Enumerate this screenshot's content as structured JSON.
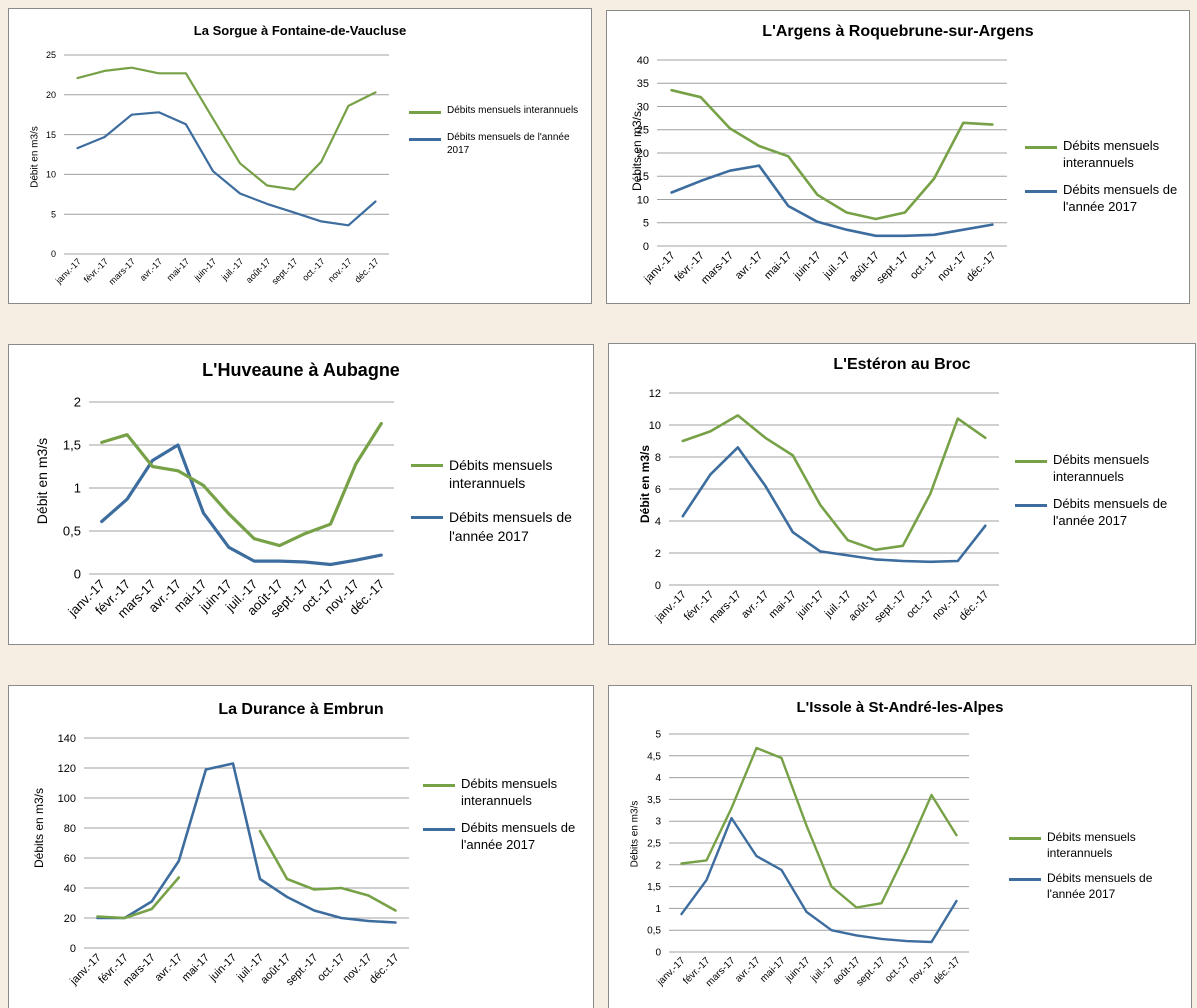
{
  "legend": {
    "interannual": "Débits mensuels interannuels",
    "year2017": "Débits mensuels de l'année 2017"
  },
  "colors": {
    "interannual": "#77a147",
    "year2017": "#3d6d9e",
    "grid": "#a0a0a0"
  },
  "chart_data": [
    {
      "type": "line",
      "title": "La Sorgue à Fontaine-de-Vaucluse",
      "ylabel": "Débit en m3/s",
      "categories": [
        "janv.-17",
        "févr.-17",
        "mars-17",
        "avr.-17",
        "mai-17",
        "juin-17",
        "juil.-17",
        "août-17",
        "sept.-17",
        "oct.-17",
        "nov.-17",
        "déc.-17"
      ],
      "yticks": [
        "0",
        "5",
        "10",
        "15",
        "20",
        "25"
      ],
      "ylim": [
        0,
        25
      ],
      "grid": true,
      "legend_position": "right",
      "series": [
        {
          "name": "Débits mensuels interannuels",
          "values": [
            22.1,
            23.0,
            23.4,
            22.7,
            22.7,
            17.0,
            11.4,
            8.6,
            8.1,
            11.6,
            18.6,
            20.3
          ]
        },
        {
          "name": "Débits mensuels de l'année 2017",
          "values": [
            13.3,
            14.7,
            17.5,
            17.8,
            16.3,
            10.4,
            7.6,
            6.3,
            5.2,
            4.1,
            3.6,
            6.6
          ]
        }
      ]
    },
    {
      "type": "line",
      "title": "L'Argens à Roquebrune-sur-Argens",
      "ylabel": "Débits en m3/s",
      "categories": [
        "janv.-17",
        "févr.-17",
        "mars-17",
        "avr.-17",
        "mai-17",
        "juin-17",
        "juil.-17",
        "août-17",
        "sept.-17",
        "oct.-17",
        "nov.-17",
        "déc.-17"
      ],
      "yticks": [
        "0",
        "5",
        "10",
        "15",
        "20",
        "25",
        "30",
        "35",
        "40"
      ],
      "ylim": [
        0,
        40
      ],
      "grid": true,
      "legend_position": "right",
      "series": [
        {
          "name": "Débits mensuels interannuels",
          "values": [
            33.5,
            32.0,
            25.3,
            21.5,
            19.3,
            11.0,
            7.2,
            5.8,
            7.2,
            14.5,
            26.5,
            26.1
          ]
        },
        {
          "name": "Débits mensuels de l'année 2017",
          "values": [
            11.5,
            14.0,
            16.2,
            17.3,
            8.6,
            5.2,
            3.5,
            2.2,
            2.2,
            2.4,
            3.5,
            4.6
          ]
        }
      ]
    },
    {
      "type": "line",
      "title": "L'Huveaune à Aubagne",
      "ylabel": "Débit en m3/s",
      "categories": [
        "janv.-17",
        "févr.-17",
        "mars-17",
        "avr.-17",
        "mai-17",
        "juin-17",
        "juil.-17",
        "août-17",
        "sept.-17",
        "oct.-17",
        "nov.-17",
        "déc.-17"
      ],
      "yticks": [
        "0",
        "0,5",
        "1",
        "1,5",
        "2"
      ],
      "ylim": [
        0,
        2
      ],
      "grid": true,
      "legend_position": "right",
      "series": [
        {
          "name": "Débits mensuels interannuels",
          "values": [
            1.53,
            1.62,
            1.25,
            1.2,
            1.03,
            0.7,
            0.41,
            0.33,
            0.47,
            0.58,
            1.28,
            1.75
          ]
        },
        {
          "name": "Débits mensuels de l'année 2017",
          "values": [
            0.61,
            0.87,
            1.32,
            1.5,
            0.71,
            0.31,
            0.15,
            0.15,
            0.14,
            0.11,
            0.16,
            0.22
          ]
        }
      ]
    },
    {
      "type": "line",
      "title": "L'Estéron au Broc",
      "ylabel": "Débit en m3/s",
      "categories": [
        "janv.-17",
        "févr.-17",
        "mars-17",
        "avr.-17",
        "mai-17",
        "juin-17",
        "juil.-17",
        "août-17",
        "sept.-17",
        "oct.-17",
        "nov.-17",
        "déc.-17"
      ],
      "yticks": [
        "0",
        "2",
        "4",
        "6",
        "8",
        "10",
        "12"
      ],
      "ylim": [
        0,
        12
      ],
      "grid": true,
      "legend_position": "right",
      "series": [
        {
          "name": "Débits mensuels interannuels",
          "values": [
            9.0,
            9.6,
            10.6,
            9.2,
            8.1,
            5.0,
            2.8,
            2.2,
            2.45,
            5.7,
            10.4,
            9.2
          ]
        },
        {
          "name": "Débits mensuels de l'année 2017",
          "values": [
            4.3,
            6.9,
            8.6,
            6.2,
            3.3,
            2.1,
            1.85,
            1.6,
            1.5,
            1.45,
            1.5,
            3.7
          ]
        }
      ]
    },
    {
      "type": "line",
      "title": "La Durance à Embrun",
      "ylabel": "Débits en m3/s",
      "categories": [
        "janv.-17",
        "févr.-17",
        "mars-17",
        "avr.-17",
        "mai-17",
        "juin-17",
        "juil.-17",
        "août-17",
        "sept.-17",
        "oct.-17",
        "nov.-17",
        "déc.-17"
      ],
      "yticks": [
        "0",
        "20",
        "40",
        "60",
        "80",
        "100",
        "120",
        "140"
      ],
      "ylim": [
        0,
        140
      ],
      "grid": true,
      "legend_position": "right",
      "series": [
        {
          "name": "Débits mensuels interannuels",
          "values": [
            21,
            20,
            26,
            47,
            null,
            null,
            78,
            46,
            39,
            40,
            35,
            25
          ]
        },
        {
          "name": "Débits mensuels de l'année 2017",
          "values": [
            20,
            20,
            31,
            58,
            119,
            123,
            46,
            34,
            25,
            20,
            18,
            17
          ]
        }
      ]
    },
    {
      "type": "line",
      "title": "L'Issole à St-André-les-Alpes",
      "ylabel": "Débits en m3/s",
      "categories": [
        "janv.-17",
        "févr.-17",
        "mars-17",
        "avr.-17",
        "mai-17",
        "juin-17",
        "juil.-17",
        "août-17",
        "sept.-17",
        "oct.-17",
        "nov.-17",
        "déc.-17"
      ],
      "yticks": [
        "0",
        "0,5",
        "1",
        "1,5",
        "2",
        "2,5",
        "3",
        "3,5",
        "4",
        "4,5",
        "5"
      ],
      "ylim": [
        0,
        5
      ],
      "grid": true,
      "legend_position": "right",
      "series": [
        {
          "name": "Débits mensuels interannuels",
          "values": [
            2.03,
            2.1,
            3.3,
            4.68,
            4.45,
            2.9,
            1.5,
            1.02,
            1.12,
            2.3,
            3.6,
            2.68
          ]
        },
        {
          "name": "Débits mensuels de l'année 2017",
          "values": [
            0.87,
            1.65,
            3.07,
            2.2,
            1.88,
            0.92,
            0.5,
            0.38,
            0.3,
            0.25,
            0.23,
            1.17
          ]
        }
      ]
    }
  ]
}
